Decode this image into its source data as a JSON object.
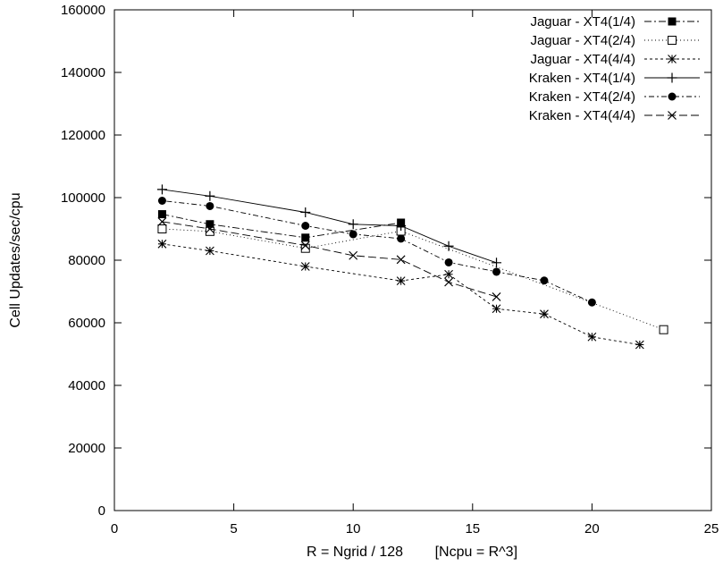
{
  "chart_data": {
    "type": "line",
    "title": "",
    "xlabel": "R = Ngrid / 128        [Ncpu = R^3]",
    "ylabel": "Cell Updates/sec/cpu",
    "xlim": [
      0,
      25
    ],
    "ylim": [
      0,
      160000
    ],
    "xticks": [
      0,
      5,
      10,
      15,
      20,
      25
    ],
    "yticks": [
      0,
      20000,
      40000,
      60000,
      80000,
      100000,
      120000,
      140000,
      160000
    ],
    "grid": false,
    "legend_position": "top-right",
    "series": [
      {
        "name": "Jaguar - XT4(1/4)",
        "marker": "filled-square",
        "dash": "dash-dot",
        "x": [
          2,
          4,
          8,
          12
        ],
        "y": [
          94700,
          91500,
          87200,
          92000
        ]
      },
      {
        "name": "Jaguar - XT4(2/4)",
        "marker": "open-square",
        "dash": "dotted",
        "x": [
          2,
          4,
          8,
          12,
          23
        ],
        "y": [
          90000,
          89200,
          83800,
          89300,
          57800
        ]
      },
      {
        "name": "Jaguar - XT4(4/4)",
        "marker": "asterisk",
        "dash": "short-dash",
        "x": [
          2,
          4,
          8,
          12,
          14,
          16,
          18,
          20,
          22
        ],
        "y": [
          85200,
          83000,
          78000,
          73400,
          75500,
          64500,
          62800,
          55500,
          53000
        ]
      },
      {
        "name": "Kraken - XT4(1/4)",
        "marker": "plus",
        "dash": "solid",
        "x": [
          2,
          4,
          8,
          10,
          12,
          14,
          16
        ],
        "y": [
          102600,
          100500,
          95300,
          91500,
          91000,
          84500,
          79200
        ]
      },
      {
        "name": "Kraken - XT4(2/4)",
        "marker": "filled-circle",
        "dash": "dot-dash",
        "x": [
          2,
          4,
          8,
          10,
          12,
          14,
          16,
          18,
          20
        ],
        "y": [
          99000,
          97300,
          91000,
          88300,
          86900,
          79300,
          76300,
          73500,
          66500
        ]
      },
      {
        "name": "Kraken - XT4(4/4)",
        "marker": "x-cross",
        "dash": "long-dash",
        "x": [
          2,
          4,
          8,
          10,
          12,
          14,
          16
        ],
        "y": [
          92300,
          90000,
          84700,
          81500,
          80200,
          73000,
          68300
        ]
      }
    ]
  }
}
